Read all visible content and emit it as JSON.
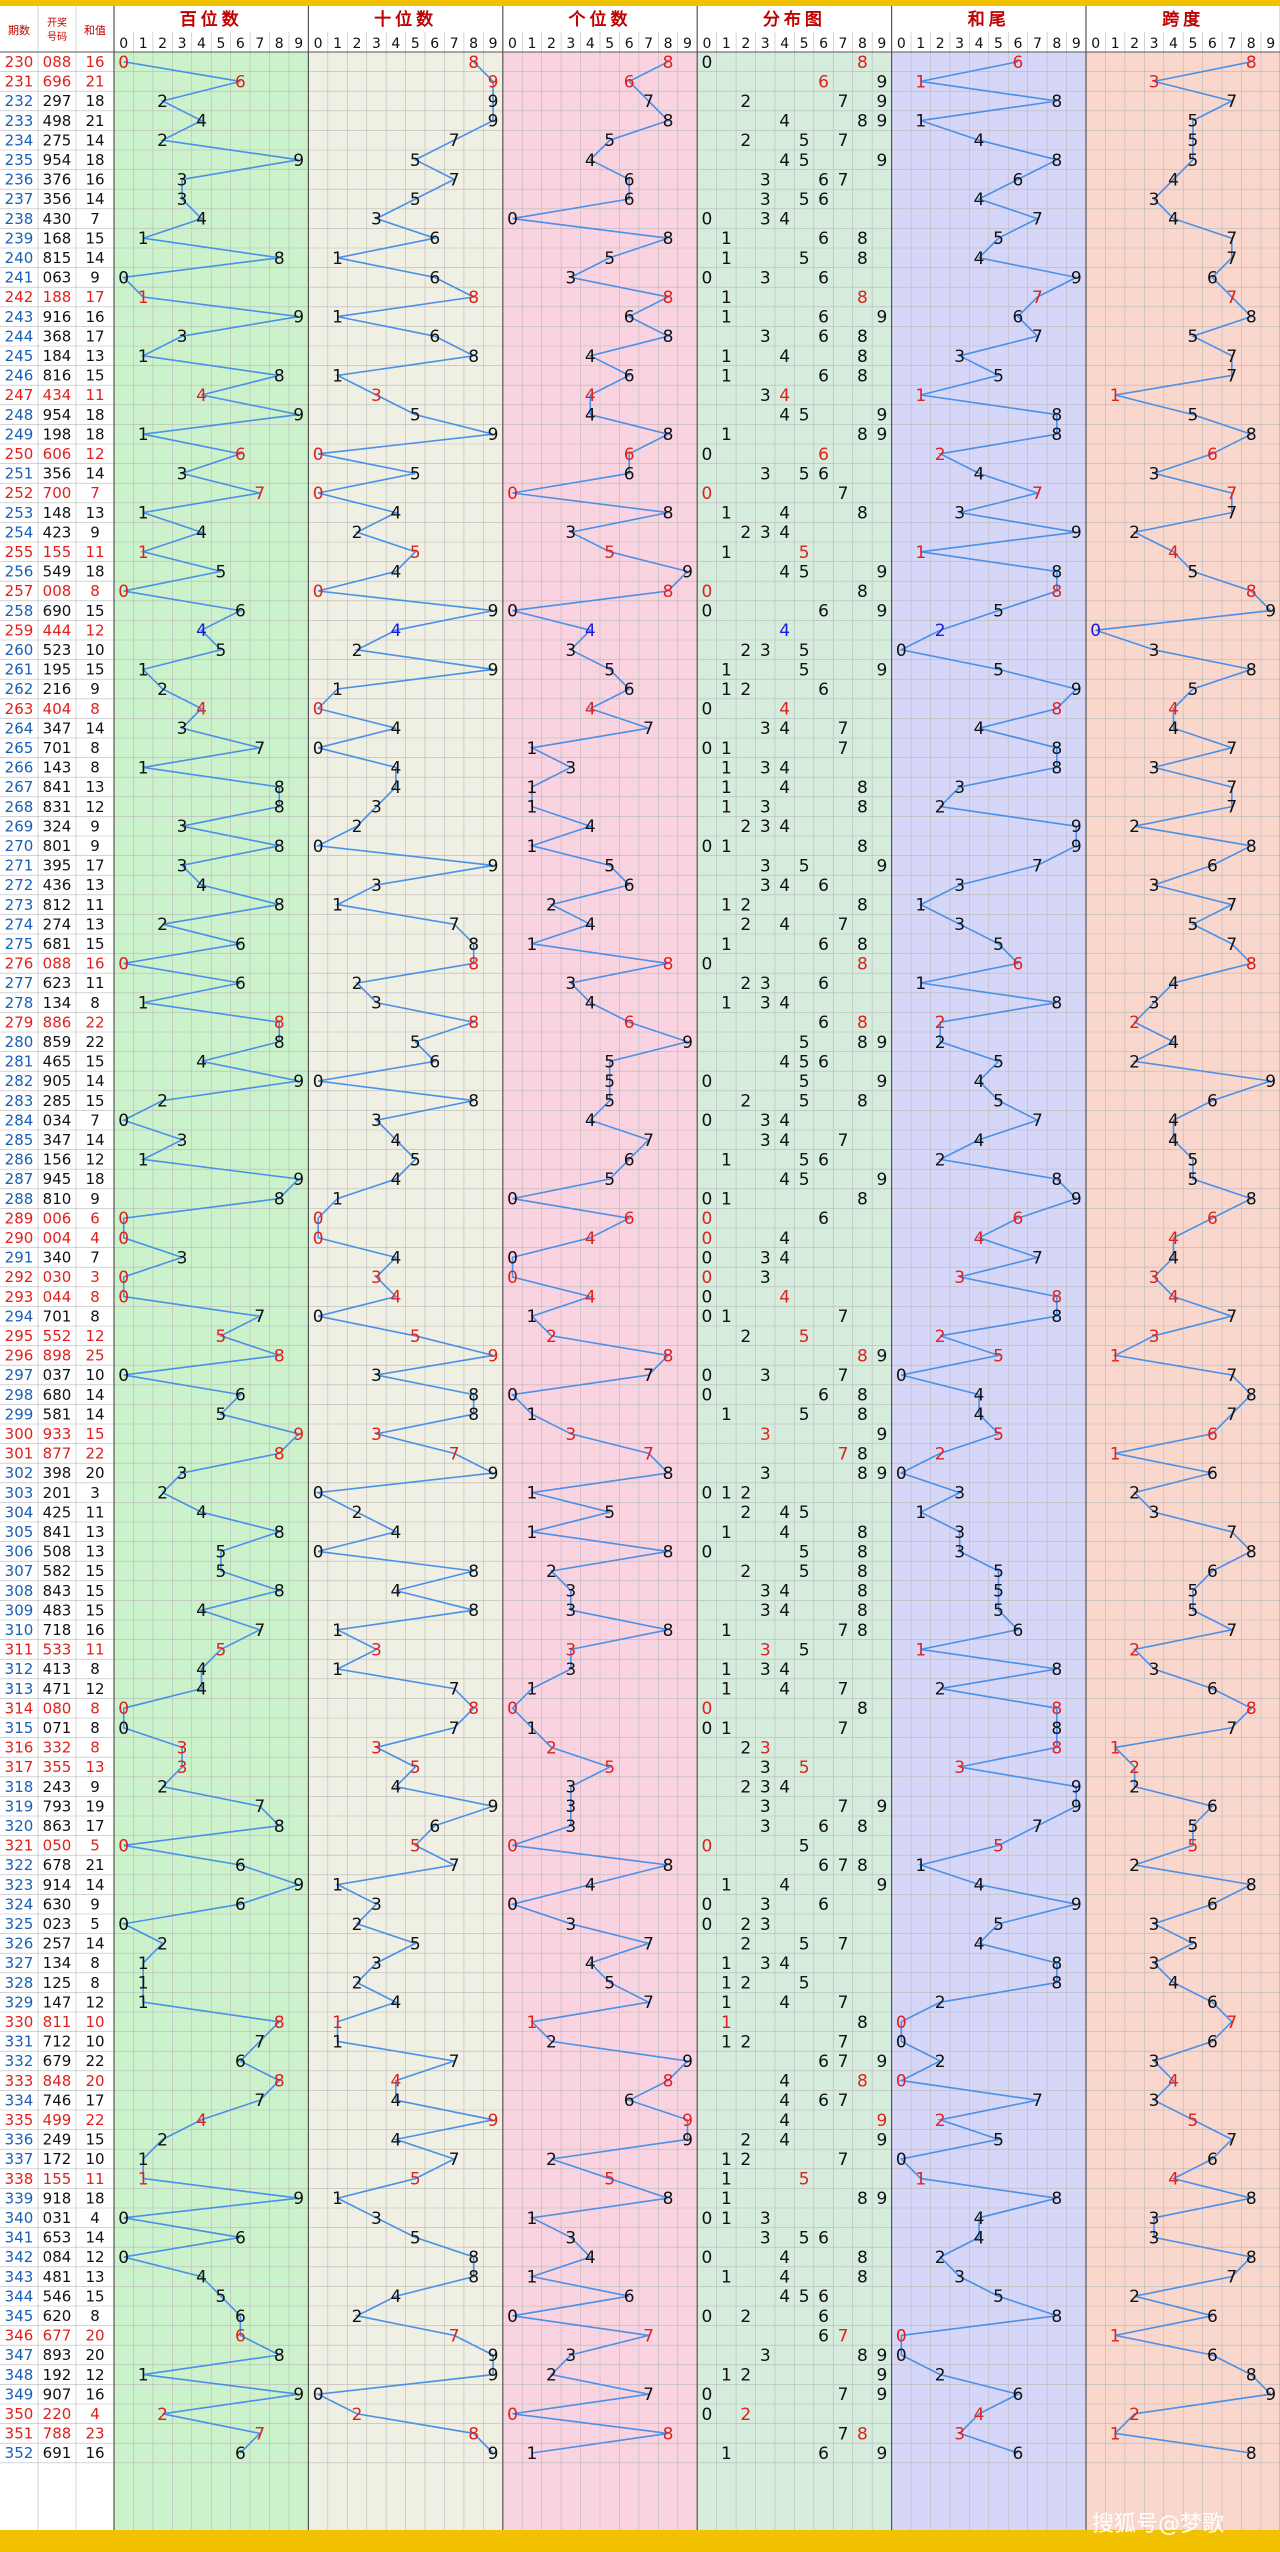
{
  "chart_data": {
    "type": "table",
    "columns": {
      "period": "期数",
      "number": "开奖号码",
      "sum": "和值"
    },
    "sections": [
      {
        "key": "hundreds",
        "title": "百位数",
        "color": "#ccf2cc"
      },
      {
        "key": "tens",
        "title": "十位数",
        "color": "#efefe3"
      },
      {
        "key": "units",
        "title": "个位数",
        "color": "#f9d4e0"
      },
      {
        "key": "distribution",
        "title": "分布图",
        "color": "#d6ecdd"
      },
      {
        "key": "sum_tail",
        "title": "和尾",
        "color": "#d6d6f8"
      },
      {
        "key": "span",
        "title": "跨度",
        "color": "#f9d7cc"
      }
    ],
    "digit_labels": [
      "0",
      "1",
      "2",
      "3",
      "4",
      "5",
      "6",
      "7",
      "8",
      "9"
    ],
    "colors": {
      "line": "#4a90e8",
      "normal": "#111111",
      "repeat": "#e0201c",
      "group": "#1a1adf",
      "header_text": "#c00000",
      "period_text": "#1a5fb4",
      "bar": "#f2c200"
    },
    "rows": [
      {
        "p": "230",
        "n": "088"
      },
      {
        "p": "231",
        "n": "696"
      },
      {
        "p": "232",
        "n": "297"
      },
      {
        "p": "233",
        "n": "498"
      },
      {
        "p": "234",
        "n": "275"
      },
      {
        "p": "235",
        "n": "954"
      },
      {
        "p": "236",
        "n": "376"
      },
      {
        "p": "237",
        "n": "356"
      },
      {
        "p": "238",
        "n": "430"
      },
      {
        "p": "239",
        "n": "168"
      },
      {
        "p": "240",
        "n": "815"
      },
      {
        "p": "241",
        "n": "063"
      },
      {
        "p": "242",
        "n": "188"
      },
      {
        "p": "243",
        "n": "916"
      },
      {
        "p": "244",
        "n": "368"
      },
      {
        "p": "245",
        "n": "184"
      },
      {
        "p": "246",
        "n": "816"
      },
      {
        "p": "247",
        "n": "434"
      },
      {
        "p": "248",
        "n": "954"
      },
      {
        "p": "249",
        "n": "198"
      },
      {
        "p": "250",
        "n": "606"
      },
      {
        "p": "251",
        "n": "356"
      },
      {
        "p": "252",
        "n": "700"
      },
      {
        "p": "253",
        "n": "148"
      },
      {
        "p": "254",
        "n": "423"
      },
      {
        "p": "255",
        "n": "155"
      },
      {
        "p": "256",
        "n": "549"
      },
      {
        "p": "257",
        "n": "008"
      },
      {
        "p": "258",
        "n": "690"
      },
      {
        "p": "259",
        "n": "444"
      },
      {
        "p": "260",
        "n": "523"
      },
      {
        "p": "261",
        "n": "195"
      },
      {
        "p": "262",
        "n": "216"
      },
      {
        "p": "263",
        "n": "404"
      },
      {
        "p": "264",
        "n": "347"
      },
      {
        "p": "265",
        "n": "701"
      },
      {
        "p": "266",
        "n": "143"
      },
      {
        "p": "267",
        "n": "841"
      },
      {
        "p": "268",
        "n": "831"
      },
      {
        "p": "269",
        "n": "324"
      },
      {
        "p": "270",
        "n": "801"
      },
      {
        "p": "271",
        "n": "395"
      },
      {
        "p": "272",
        "n": "436"
      },
      {
        "p": "273",
        "n": "812"
      },
      {
        "p": "274",
        "n": "274"
      },
      {
        "p": "275",
        "n": "681"
      },
      {
        "p": "276",
        "n": "088"
      },
      {
        "p": "277",
        "n": "623"
      },
      {
        "p": "278",
        "n": "134"
      },
      {
        "p": "279",
        "n": "886"
      },
      {
        "p": "280",
        "n": "859"
      },
      {
        "p": "281",
        "n": "465"
      },
      {
        "p": "282",
        "n": "905"
      },
      {
        "p": "283",
        "n": "285"
      },
      {
        "p": "284",
        "n": "034"
      },
      {
        "p": "285",
        "n": "347"
      },
      {
        "p": "286",
        "n": "156"
      },
      {
        "p": "287",
        "n": "945"
      },
      {
        "p": "288",
        "n": "810"
      },
      {
        "p": "289",
        "n": "006"
      },
      {
        "p": "290",
        "n": "004"
      },
      {
        "p": "291",
        "n": "340"
      },
      {
        "p": "292",
        "n": "030"
      },
      {
        "p": "293",
        "n": "044"
      },
      {
        "p": "294",
        "n": "701"
      },
      {
        "p": "295",
        "n": "552"
      },
      {
        "p": "296",
        "n": "898"
      },
      {
        "p": "297",
        "n": "037"
      },
      {
        "p": "298",
        "n": "680"
      },
      {
        "p": "299",
        "n": "581"
      },
      {
        "p": "300",
        "n": "933"
      },
      {
        "p": "301",
        "n": "877"
      },
      {
        "p": "302",
        "n": "398"
      },
      {
        "p": "303",
        "n": "201"
      },
      {
        "p": "304",
        "n": "425"
      },
      {
        "p": "305",
        "n": "841"
      },
      {
        "p": "306",
        "n": "508"
      },
      {
        "p": "307",
        "n": "582"
      },
      {
        "p": "308",
        "n": "843"
      },
      {
        "p": "309",
        "n": "483"
      },
      {
        "p": "310",
        "n": "718"
      },
      {
        "p": "311",
        "n": "533"
      },
      {
        "p": "312",
        "n": "413"
      },
      {
        "p": "313",
        "n": "471"
      },
      {
        "p": "314",
        "n": "080"
      },
      {
        "p": "315",
        "n": "071"
      },
      {
        "p": "316",
        "n": "332"
      },
      {
        "p": "317",
        "n": "355"
      },
      {
        "p": "318",
        "n": "243"
      },
      {
        "p": "319",
        "n": "793"
      },
      {
        "p": "320",
        "n": "863"
      },
      {
        "p": "321",
        "n": "050"
      },
      {
        "p": "322",
        "n": "678"
      },
      {
        "p": "323",
        "n": "914"
      },
      {
        "p": "324",
        "n": "630"
      },
      {
        "p": "325",
        "n": "023"
      },
      {
        "p": "326",
        "n": "257"
      },
      {
        "p": "327",
        "n": "134"
      },
      {
        "p": "328",
        "n": "125"
      },
      {
        "p": "329",
        "n": "147"
      },
      {
        "p": "330",
        "n": "811"
      },
      {
        "p": "331",
        "n": "712"
      },
      {
        "p": "332",
        "n": "679"
      },
      {
        "p": "333",
        "n": "848"
      },
      {
        "p": "334",
        "n": "746"
      },
      {
        "p": "335",
        "n": "499"
      },
      {
        "p": "336",
        "n": "249"
      },
      {
        "p": "337",
        "n": "172"
      },
      {
        "p": "338",
        "n": "155"
      },
      {
        "p": "339",
        "n": "918"
      },
      {
        "p": "340",
        "n": "031"
      },
      {
        "p": "341",
        "n": "653"
      },
      {
        "p": "342",
        "n": "084"
      },
      {
        "p": "343",
        "n": "481"
      },
      {
        "p": "344",
        "n": "546"
      },
      {
        "p": "345",
        "n": "620"
      },
      {
        "p": "346",
        "n": "677"
      },
      {
        "p": "347",
        "n": "893"
      },
      {
        "p": "348",
        "n": "192"
      },
      {
        "p": "349",
        "n": "907"
      },
      {
        "p": "350",
        "n": "220"
      },
      {
        "p": "351",
        "n": "788"
      },
      {
        "p": "352",
        "n": "691"
      }
    ]
  },
  "watermark": "搜狐号@梦歌"
}
